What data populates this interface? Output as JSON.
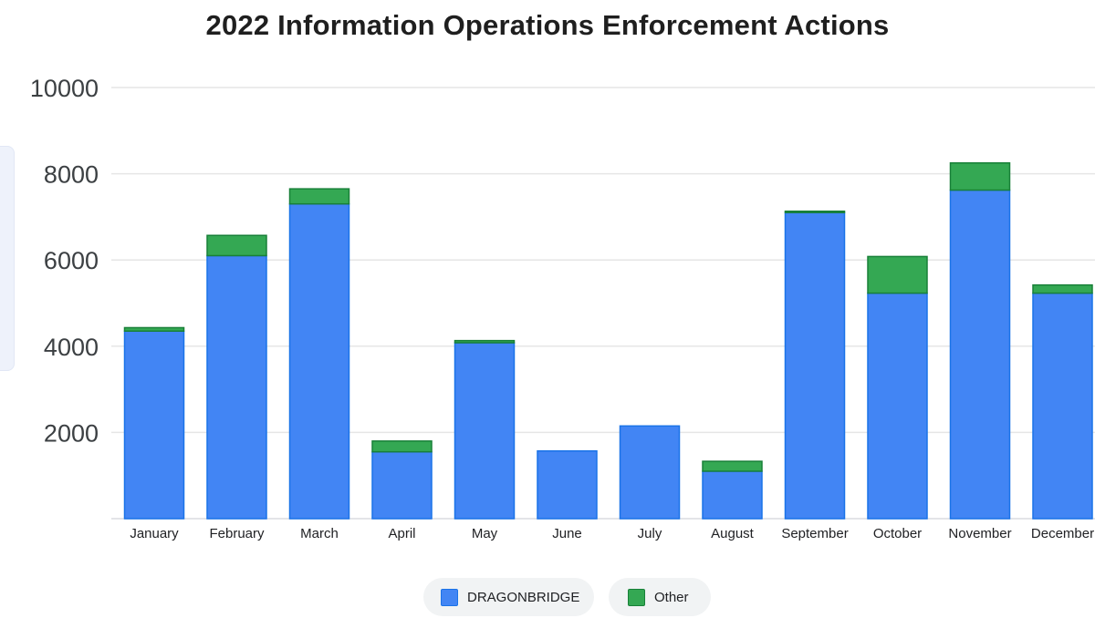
{
  "chart_data": {
    "type": "bar",
    "stacked": true,
    "title": "2022 Information Operations Enforcement Actions",
    "xlabel": "",
    "ylabel": "",
    "categories": [
      "January",
      "February",
      "March",
      "April",
      "May",
      "June",
      "July",
      "August",
      "September",
      "October",
      "November",
      "December"
    ],
    "series": [
      {
        "name": "DRAGONBRIDGE",
        "color": "#4285f4",
        "values": [
          4350,
          6100,
          7300,
          1550,
          4080,
          1570,
          2150,
          1100,
          7100,
          5230,
          7620,
          5230
        ]
      },
      {
        "name": "Other",
        "color": "#34a853",
        "values": [
          80,
          470,
          350,
          250,
          50,
          0,
          0,
          230,
          30,
          850,
          630,
          190
        ]
      }
    ],
    "ylim": [
      0,
      10000
    ],
    "yticks": [
      2000,
      4000,
      6000,
      8000,
      10000
    ],
    "grid": true,
    "legend_position": "bottom"
  }
}
